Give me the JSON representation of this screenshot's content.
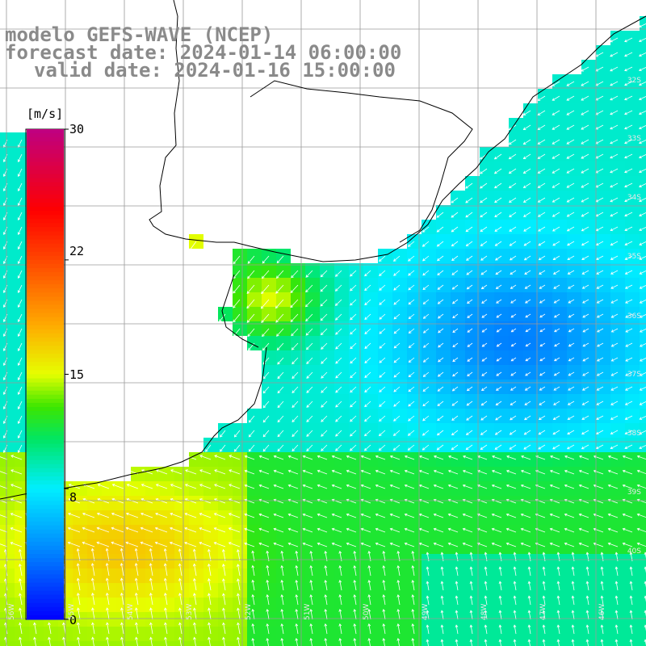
{
  "titles": {
    "line1": "modelo GEFS-WAVE (NCEP)",
    "line2": "forecast date: 2024-01-14 06:00:00",
    "line3": "valid date: 2024-01-16 15:00:00"
  },
  "colorbar": {
    "unit": "[m/s]",
    "min": 0,
    "max": 30,
    "ticks": [
      "30",
      "22",
      "15",
      "8",
      "0"
    ],
    "tick_values": [
      30,
      22,
      15,
      8,
      0
    ],
    "colors": [
      "#0000ff",
      "#0080ff",
      "#00e0ff",
      "#00ff80",
      "#40ff00",
      "#c0ff00",
      "#ffff00",
      "#ffa000",
      "#ff4000",
      "#ff0000",
      "#e00050",
      "#c00080"
    ]
  },
  "lat_labels": [
    "32S",
    "33S",
    "34S",
    "35S",
    "36S",
    "37S",
    "38S",
    "39S",
    "40S"
  ],
  "lon_labels": [
    "56W",
    "55W",
    "54W",
    "53W",
    "52W",
    "51W",
    "50W",
    "49W",
    "48W",
    "47W",
    "46W"
  ],
  "colors": {
    "land": "#ffffff",
    "coast": "#000000",
    "grid": "#9a9a9a",
    "arrow": "#ffffff"
  }
}
